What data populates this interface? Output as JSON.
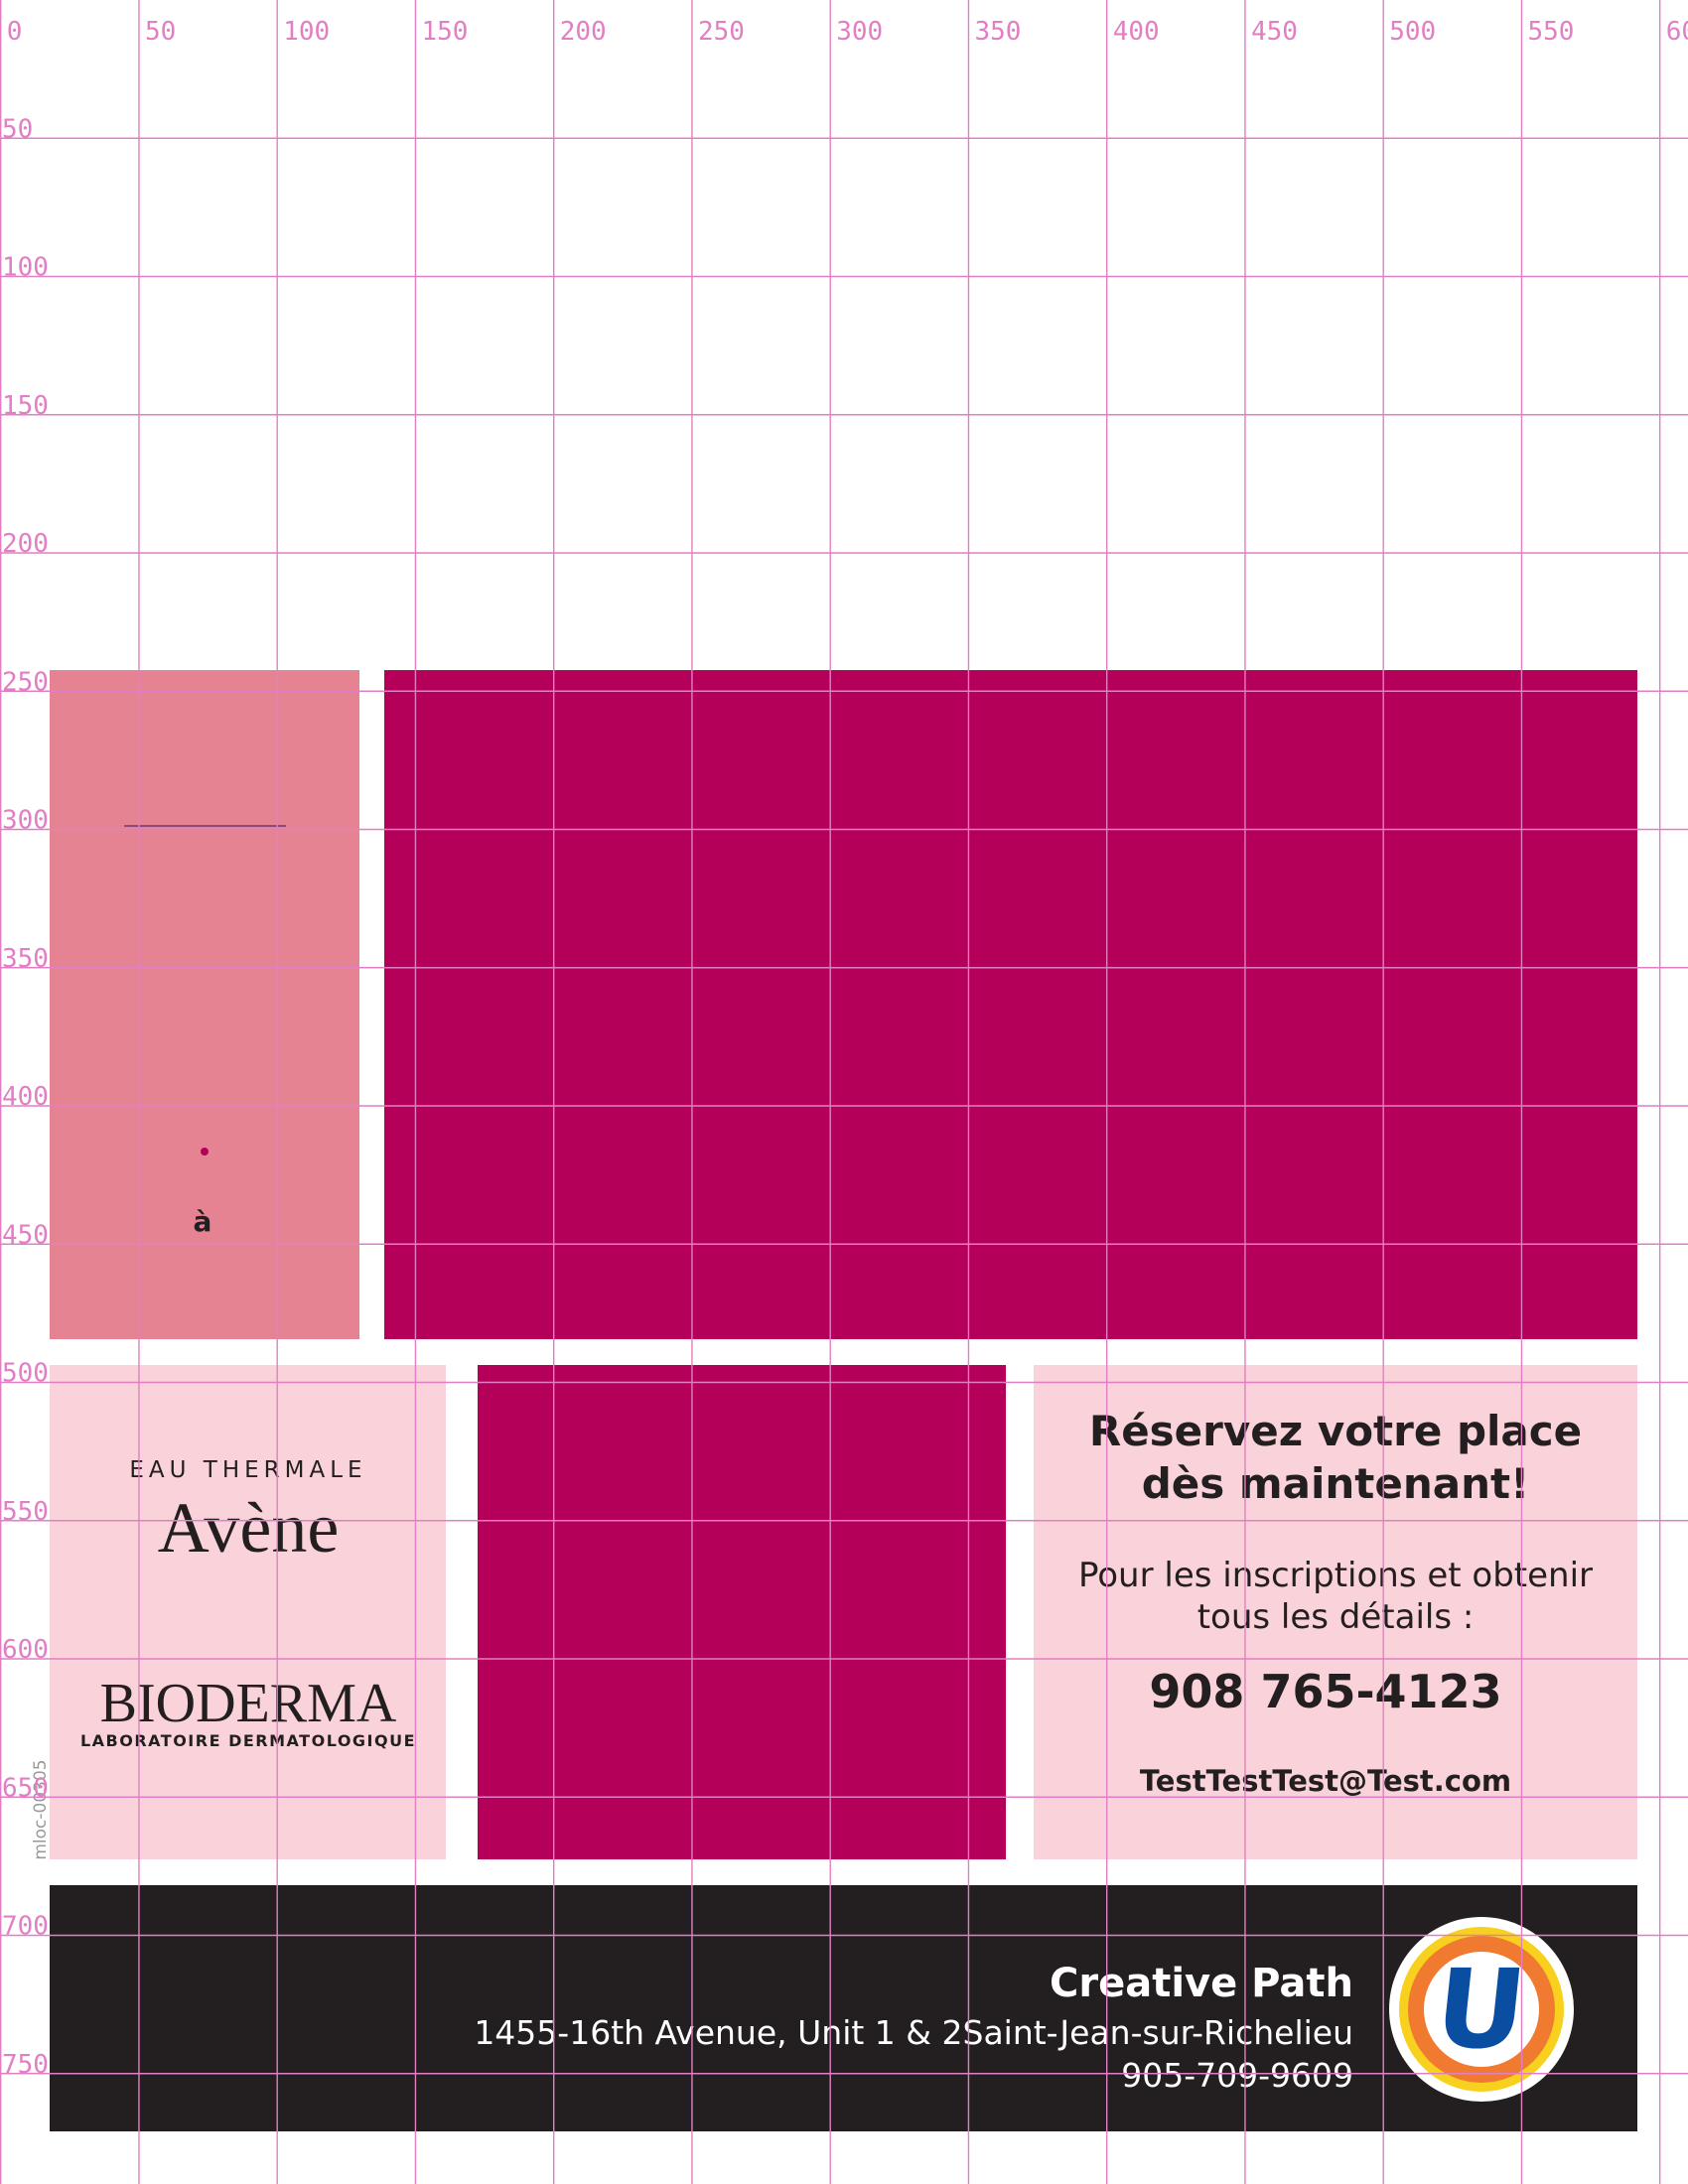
{
  "grid": {
    "x_labels": [
      "0",
      "50",
      "100",
      "150",
      "200",
      "250",
      "300",
      "350",
      "400",
      "450",
      "500",
      "550",
      "60"
    ],
    "y_labels": [
      "50",
      "100",
      "150",
      "200",
      "250",
      "300",
      "350",
      "400",
      "450",
      "500",
      "550",
      "600",
      "650",
      "700",
      "750"
    ]
  },
  "hero": {
    "letter": "à"
  },
  "brands": {
    "avene_top": "EAU THERMALE",
    "avene": "Avène",
    "bioderma": "BIODERMA",
    "bioderma_sub": "LABORATOIRE DERMATOLOGIQUE",
    "code": "mloc-00305"
  },
  "contact": {
    "title_line1": "Réservez votre place",
    "title_line2": "dès maintenant!",
    "info_line1": "Pour les inscriptions et obtenir",
    "info_line2": "tous les détails :",
    "phone": "908 765-4123",
    "email": "TestTestTest@Test.com"
  },
  "footer": {
    "name": "Creative Path",
    "address": "1455-16th Avenue, Unit 1 & 2Saint-Jean-sur-Richelieu",
    "phone": "905-709-9609",
    "logo": "U"
  }
}
